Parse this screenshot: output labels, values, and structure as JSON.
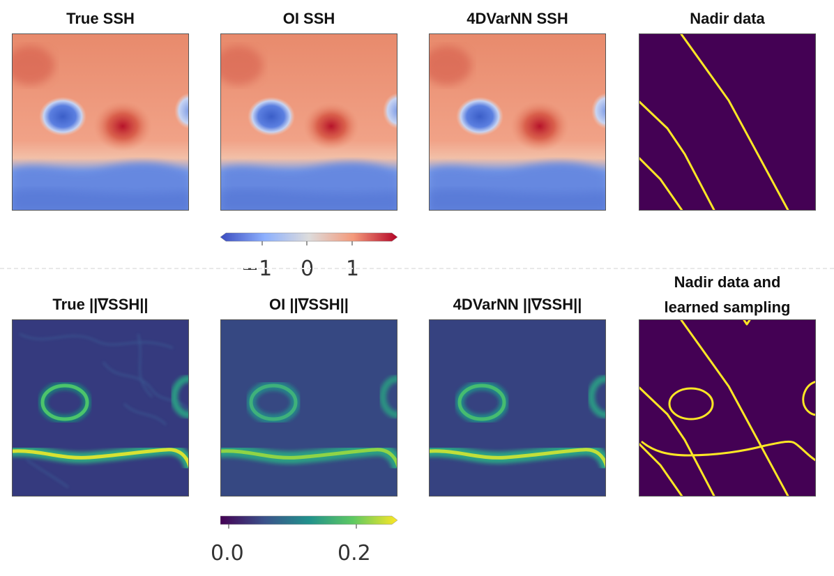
{
  "titles": {
    "true_ssh": "True SSH",
    "oi_ssh": "OI SSH",
    "fourdvarnn_ssh": "4DVarNN SSH",
    "nadir_data": "Nadir data",
    "true_grad": "True ||∇SSH||",
    "oi_grad": "OI ||∇SSH||",
    "fourdvarnn_grad": "4DVarNN ||∇SSH||",
    "nadir_learned_line1": "Nadir data and",
    "nadir_learned_line2": "learned sampling"
  },
  "colorbars": {
    "ssh": {
      "colormap": "coolwarm",
      "ticks": [
        "−1",
        "0",
        "1"
      ]
    },
    "grad": {
      "colormap": "viridis",
      "ticks": [
        "0.0",
        "0.2"
      ]
    }
  },
  "colors": {
    "nadir_background": "#440154",
    "nadir_track": "#fde725",
    "ssh_high": "#b40426",
    "ssh_low": "#3b4cc0",
    "grad_low": "#440154",
    "grad_high": "#fde725"
  }
}
